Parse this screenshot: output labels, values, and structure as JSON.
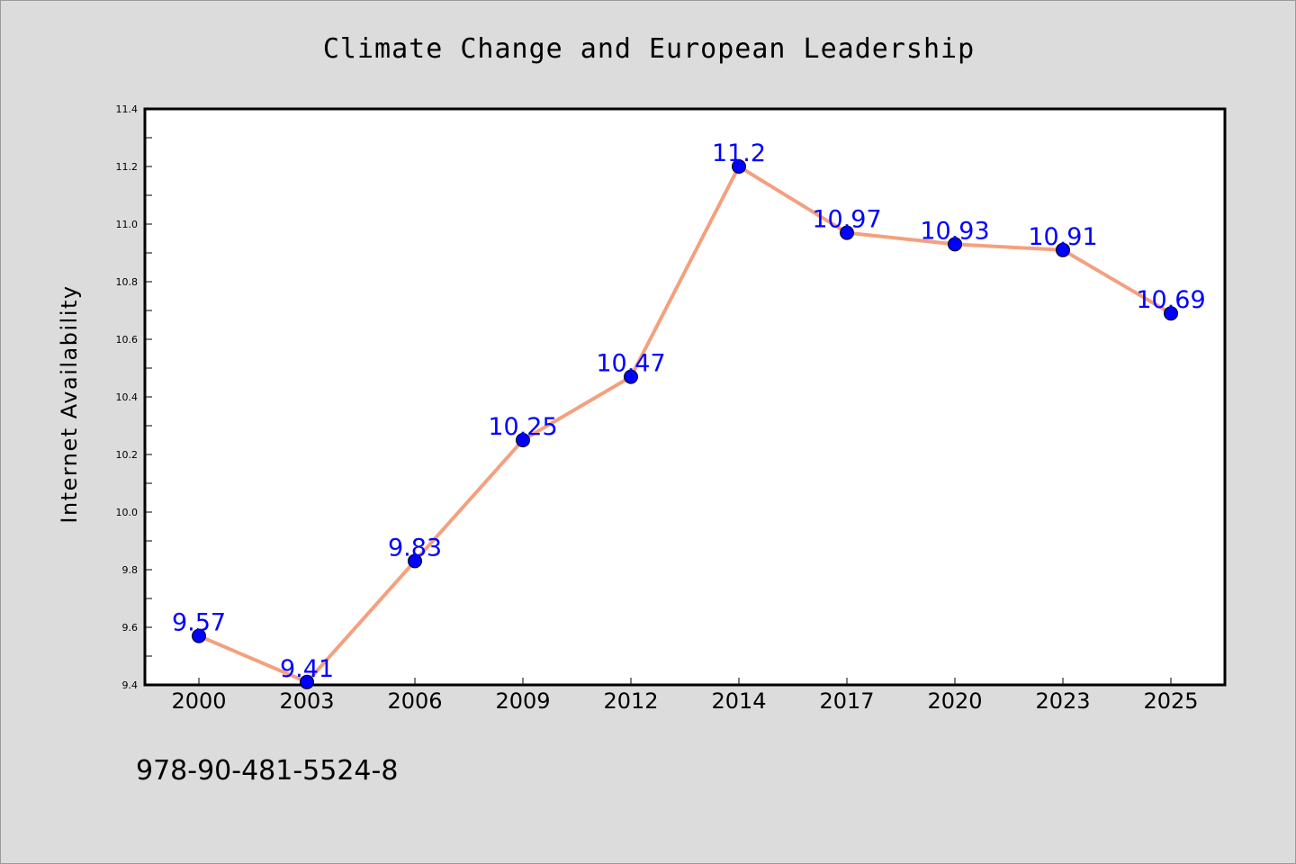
{
  "chart_data": {
    "type": "line",
    "title": "Climate Change and European Leadership",
    "xlabel": "",
    "ylabel": "Internet Availability",
    "categories": [
      "2000",
      "2003",
      "2006",
      "2009",
      "2012",
      "2014",
      "2017",
      "2020",
      "2023",
      "2025"
    ],
    "series": [
      {
        "values": [
          9.57,
          9.41,
          9.83,
          10.25,
          10.47,
          11.2,
          10.97,
          10.93,
          10.91,
          10.69
        ],
        "data_labels": [
          "9.57",
          "9.41",
          "9.83",
          "10.25",
          "10.47",
          "11.2",
          "10.97",
          "10.93",
          "10.91",
          "10.69"
        ],
        "line_color": "#f4a07f",
        "marker_color": "#0000ff"
      }
    ],
    "ylim": [
      9.4,
      11.4
    ],
    "yticks": [
      "9.4",
      "9.6",
      "9.8",
      "10.0",
      "10.2",
      "10.4",
      "10.6",
      "10.8",
      "11.0",
      "11.2",
      "11.4"
    ],
    "grid": false,
    "legend": "none",
    "colors": {
      "background": "#dcdcdc",
      "plot_area": "#ffffff",
      "data_label": "#0000ff"
    }
  },
  "footnote": "978-90-481-5524-8"
}
